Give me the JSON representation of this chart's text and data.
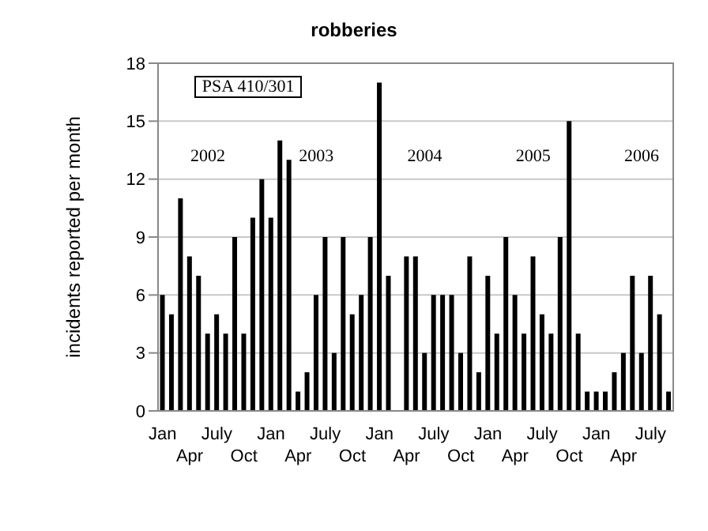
{
  "chart_data": {
    "type": "bar",
    "title": "robberies",
    "ylabel": "incidents reported per month",
    "categories": [
      "Jan",
      null,
      null,
      "Apr",
      null,
      null,
      "July",
      null,
      null,
      "Oct",
      null,
      null,
      "Jan",
      null,
      null,
      "Apr",
      null,
      null,
      "July",
      null,
      null,
      "Oct",
      null,
      null,
      "Jan",
      null,
      null,
      "Apr",
      null,
      null,
      "July",
      null,
      null,
      "Oct",
      null,
      null,
      "Jan",
      null,
      null,
      "Apr",
      null,
      null,
      "July",
      null,
      null,
      "Oct",
      null,
      null,
      "Jan",
      null,
      null,
      "Apr",
      null,
      null,
      "July",
      null,
      null
    ],
    "values": [
      6,
      5,
      11,
      8,
      7,
      4,
      5,
      4,
      9,
      4,
      10,
      12,
      10,
      14,
      13,
      1,
      2,
      6,
      9,
      3,
      9,
      5,
      6,
      9,
      17,
      7,
      0,
      8,
      8,
      3,
      6,
      6,
      6,
      3,
      8,
      2,
      7,
      4,
      9,
      6,
      4,
      8,
      5,
      4,
      9,
      15,
      4,
      1,
      1,
      1,
      2,
      3,
      7,
      3,
      7,
      5,
      1
    ],
    "color": "#000000",
    "ylim": [
      0,
      18
    ],
    "yticks": [
      0,
      3,
      6,
      9,
      12,
      15,
      18
    ],
    "grid": "y",
    "annotations": [
      "PSA 410/301",
      "2002",
      "2003",
      "2004",
      "2005",
      "2006"
    ]
  }
}
